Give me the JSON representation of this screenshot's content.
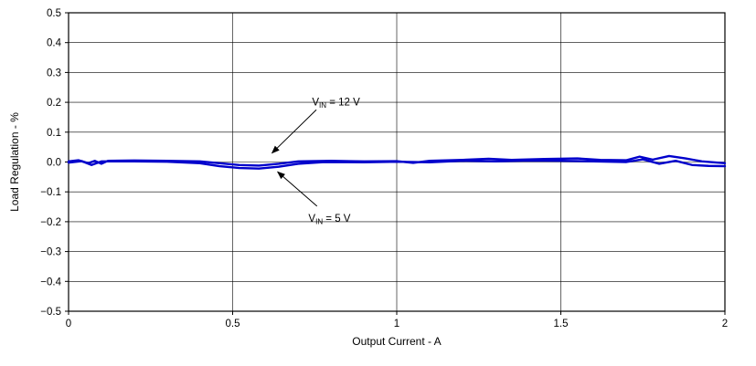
{
  "page": {
    "background": "#ffffff"
  },
  "chart_data": {
    "type": "line",
    "title": "",
    "xlabel": "Output Current - A",
    "ylabel": "Load Regulation  - %",
    "xlim": [
      0,
      2
    ],
    "ylim": [
      -0.5,
      0.5
    ],
    "grid": {
      "x_step": 0.5,
      "y_step": 0.1,
      "color": "#000000",
      "on": true
    },
    "axis_color": "#000000",
    "x_ticks": [
      {
        "v": 0,
        "label": "0"
      },
      {
        "v": 0.5,
        "label": "0.5"
      },
      {
        "v": 1,
        "label": "1"
      },
      {
        "v": 1.5,
        "label": "1.5"
      },
      {
        "v": 2,
        "label": "2"
      }
    ],
    "y_ticks": [
      {
        "v": 0.5,
        "label": "0.5"
      },
      {
        "v": 0.4,
        "label": "0.4"
      },
      {
        "v": 0.3,
        "label": "0.3"
      },
      {
        "v": 0.2,
        "label": "0.2"
      },
      {
        "v": 0.1,
        "label": "0.1"
      },
      {
        "v": 0,
        "label": "0.0"
      },
      {
        "v": -0.1,
        "label": "−0.1"
      },
      {
        "v": -0.2,
        "label": "−0.2"
      },
      {
        "v": -0.3,
        "label": "−0.3"
      },
      {
        "v": -0.4,
        "label": "−0.4"
      },
      {
        "v": -0.5,
        "label": "−0.5"
      }
    ],
    "series": [
      {
        "name": "VIN = 12 V",
        "color": "#0000CC",
        "points": [
          [
            0,
            0.002
          ],
          [
            0.03,
            0.006
          ],
          [
            0.06,
            -0.004
          ],
          [
            0.08,
            0.004
          ],
          [
            0.1,
            -0.006
          ],
          [
            0.12,
            0.004
          ],
          [
            0.2,
            0.005
          ],
          [
            0.3,
            0.004
          ],
          [
            0.4,
            0.002
          ],
          [
            0.46,
            -0.004
          ],
          [
            0.52,
            -0.01
          ],
          [
            0.58,
            -0.012
          ],
          [
            0.64,
            -0.006
          ],
          [
            0.7,
            0.002
          ],
          [
            0.8,
            0.004
          ],
          [
            0.9,
            0.002
          ],
          [
            1,
            0.003
          ],
          [
            1.05,
            -0.003
          ],
          [
            1.1,
            0.004
          ],
          [
            1.2,
            0.007
          ],
          [
            1.28,
            0.011
          ],
          [
            1.35,
            0.007
          ],
          [
            1.45,
            0.01
          ],
          [
            1.55,
            0.012
          ],
          [
            1.62,
            0.007
          ],
          [
            1.7,
            0.006
          ],
          [
            1.74,
            0.018
          ],
          [
            1.78,
            0.008
          ],
          [
            1.83,
            0.02
          ],
          [
            1.88,
            0.012
          ],
          [
            1.93,
            0.002
          ],
          [
            2,
            -0.004
          ]
        ]
      },
      {
        "name": "VIN = 5 V",
        "color": "#0000CC",
        "points": [
          [
            0,
            -0.002
          ],
          [
            0.04,
            0.003
          ],
          [
            0.07,
            -0.01
          ],
          [
            0.1,
            0.002
          ],
          [
            0.2,
            0.002
          ],
          [
            0.3,
            0.001
          ],
          [
            0.4,
            -0.004
          ],
          [
            0.46,
            -0.014
          ],
          [
            0.52,
            -0.02
          ],
          [
            0.58,
            -0.022
          ],
          [
            0.64,
            -0.016
          ],
          [
            0.7,
            -0.006
          ],
          [
            0.78,
            0
          ],
          [
            0.9,
            -0.001
          ],
          [
            1,
            0.001
          ],
          [
            1.1,
            -0.001
          ],
          [
            1.2,
            0.004
          ],
          [
            1.3,
            0.002
          ],
          [
            1.4,
            0.005
          ],
          [
            1.5,
            0.004
          ],
          [
            1.6,
            0.002
          ],
          [
            1.7,
            0
          ],
          [
            1.75,
            0.009
          ],
          [
            1.8,
            -0.006
          ],
          [
            1.85,
            0.004
          ],
          [
            1.9,
            -0.01
          ],
          [
            1.95,
            -0.013
          ],
          [
            2,
            -0.014
          ]
        ]
      }
    ],
    "annotations": [
      {
        "name": "VIN = 12 V",
        "pre": "V",
        "sub": "IN",
        "post": " = 12 V",
        "text_x": 0.742,
        "text_y": 0.19,
        "arrow": [
          0.755,
          0.175,
          0.62,
          0.03
        ]
      },
      {
        "name": "VIN = 5 V",
        "pre": "V",
        "sub": "IN",
        "post": " = 5 V",
        "text_x": 0.731,
        "text_y": -0.2,
        "arrow": [
          0.757,
          -0.148,
          0.637,
          -0.033
        ]
      }
    ]
  }
}
